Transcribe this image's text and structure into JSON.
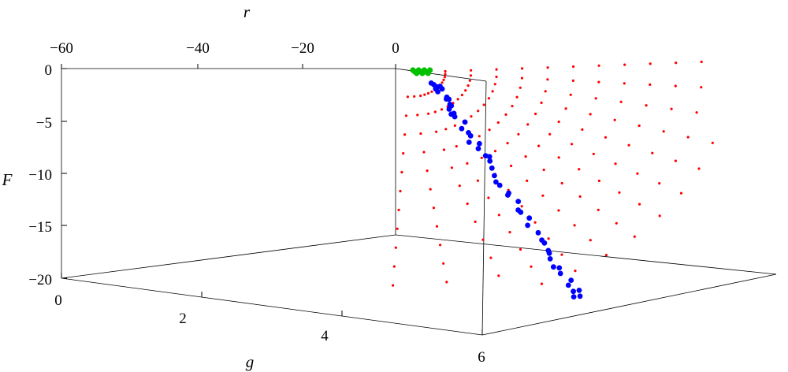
{
  "chart_data": {
    "type": "scatter",
    "title": "",
    "axes": {
      "r": {
        "label": "r",
        "range": [
          -60,
          0
        ],
        "ticks": [
          "−60",
          "−40",
          "−20",
          "0"
        ],
        "tick_values": [
          -60,
          -40,
          -20,
          0
        ]
      },
      "F": {
        "label": "F",
        "range": [
          -20,
          0
        ],
        "ticks": [
          "0",
          "−5",
          "−10",
          "−15",
          "−20"
        ],
        "tick_values": [
          0,
          -5,
          -10,
          -15,
          -20
        ]
      },
      "g": {
        "label": "g",
        "range": [
          0,
          6
        ],
        "ticks": [
          "0",
          "2",
          "4",
          "6"
        ],
        "tick_values": [
          0,
          2,
          4,
          6
        ]
      }
    },
    "grid": false,
    "legend": "none",
    "series": [
      {
        "color": "#ff0000",
        "marker": "small",
        "description_values": "regular grid of points in (r, g) forming curved fans downward in F",
        "points_generated": true
      },
      {
        "color": "#0000ff",
        "marker": "large"
      },
      {
        "color": "#00c000",
        "marker": "large"
      }
    ],
    "red_grid": {
      "g_values": [
        0.2,
        0.6,
        1.0,
        1.4,
        1.8,
        2.2,
        2.6,
        3.0,
        3.4,
        3.8,
        4.2,
        4.6,
        5.0,
        5.4,
        5.8
      ],
      "F_values": [
        -0.3,
        -1.0,
        -2.0,
        -3.2,
        -4.6,
        -6.2,
        -8.0,
        -10.0,
        -12.2,
        -14.6,
        -17.0
      ]
    },
    "blue_points": [
      [
        0.5,
        -0.6
      ],
      [
        0.7,
        -0.9
      ],
      [
        0.9,
        -1.2
      ],
      [
        1.1,
        -1.6
      ],
      [
        1.3,
        -2.0
      ],
      [
        1.5,
        -2.5
      ],
      [
        1.7,
        -3.0
      ],
      [
        1.9,
        -3.6
      ],
      [
        2.1,
        -4.3
      ],
      [
        2.3,
        -5.0
      ],
      [
        2.5,
        -5.8
      ],
      [
        2.7,
        -6.6
      ],
      [
        2.9,
        -7.5
      ],
      [
        3.1,
        -8.4
      ],
      [
        3.3,
        -9.4
      ],
      [
        3.5,
        -10.4
      ],
      [
        3.7,
        -11.4
      ],
      [
        3.9,
        -12.5
      ],
      [
        4.1,
        -13.5
      ],
      [
        4.3,
        -14.6
      ],
      [
        4.5,
        -15.6
      ],
      [
        4.7,
        -16.6
      ],
      [
        4.9,
        -17.5
      ],
      [
        5.1,
        -18.4
      ],
      [
        5.3,
        -19.2
      ],
      [
        5.5,
        -19.8
      ],
      [
        5.6,
        -20.0
      ],
      [
        5.4,
        -19.5
      ],
      [
        5.2,
        -18.8
      ],
      [
        4.8,
        -17.0
      ],
      [
        4.4,
        -15.0
      ],
      [
        4.0,
        -13.0
      ],
      [
        3.6,
        -10.9
      ],
      [
        3.2,
        -8.9
      ],
      [
        2.8,
        -7.0
      ],
      [
        2.4,
        -5.4
      ],
      [
        2.0,
        -3.9
      ],
      [
        1.6,
        -2.7
      ],
      [
        1.2,
        -1.8
      ],
      [
        0.8,
        -1.0
      ],
      [
        0.6,
        -0.7
      ],
      [
        1.0,
        -1.4
      ],
      [
        1.4,
        -2.2
      ],
      [
        1.8,
        -3.3
      ],
      [
        2.2,
        -4.6
      ],
      [
        2.6,
        -6.2
      ],
      [
        3.0,
        -7.9
      ],
      [
        3.4,
        -9.9
      ],
      [
        3.8,
        -11.9
      ],
      [
        4.2,
        -14.0
      ],
      [
        4.6,
        -16.1
      ],
      [
        5.0,
        -18.0
      ]
    ],
    "green_points": [
      [
        0.1,
        -0.1
      ],
      [
        0.15,
        -0.15
      ],
      [
        0.2,
        -0.1
      ],
      [
        0.25,
        -0.2
      ],
      [
        0.3,
        -0.15
      ],
      [
        0.35,
        -0.2
      ],
      [
        0.2,
        -0.25
      ],
      [
        0.3,
        -0.3
      ],
      [
        0.4,
        -0.25
      ],
      [
        0.12,
        -0.2
      ]
    ]
  },
  "labels": {
    "r_title": "r",
    "F_title": "F",
    "g_title": "g",
    "r_ticks": [
      "−60",
      "−40",
      "−20",
      "0"
    ],
    "F_ticks": [
      "0",
      "−5",
      "−10",
      "−15",
      "−20"
    ],
    "g_ticks": [
      "0",
      "2",
      "4",
      "6"
    ]
  }
}
